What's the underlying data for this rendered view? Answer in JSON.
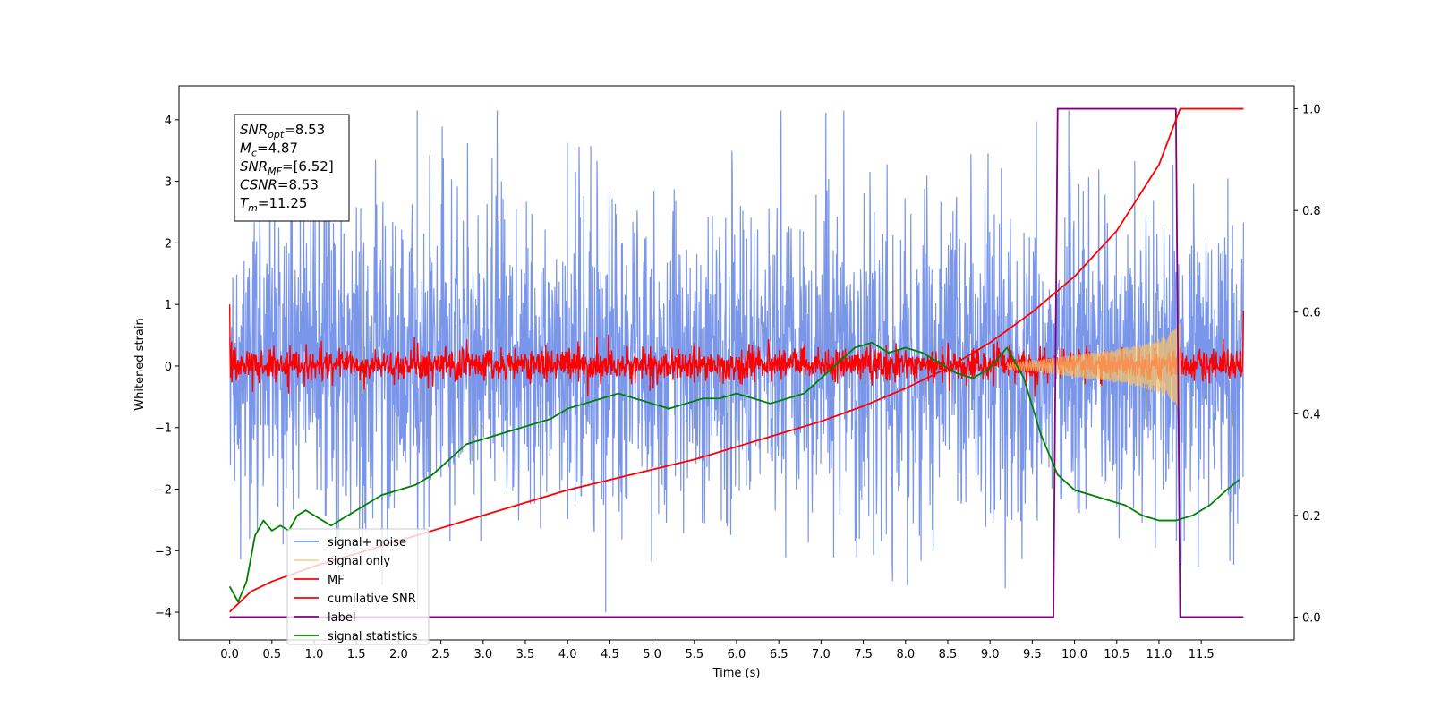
{
  "chart_data": {
    "type": "line",
    "xlabel": "Time (s)",
    "ylabel": "Whitened strain",
    "xlim": [
      -0.6,
      12.6
    ],
    "ylim": [
      -4.45,
      4.55
    ],
    "ylim_right": [
      -0.045,
      1.045
    ],
    "x_ticks": [
      "0.0",
      "0.5",
      "1.0",
      "1.5",
      "2.0",
      "2.5",
      "3.0",
      "3.5",
      "4.0",
      "4.5",
      "5.0",
      "5.5",
      "6.0",
      "6.5",
      "7.0",
      "7.5",
      "8.0",
      "8.5",
      "9.0",
      "9.5",
      "10.0",
      "10.5",
      "11.0",
      "11.5"
    ],
    "y_ticks": [
      "4",
      "3",
      "2",
      "1",
      "0",
      "−1",
      "−2",
      "−3",
      "−4"
    ],
    "y_ticks_right": [
      "1.0",
      "0.8",
      "0.6",
      "0.4",
      "0.2",
      "0.0"
    ],
    "info_box": [
      {
        "main": "SNR",
        "sub": "opt",
        "value": "=8.53"
      },
      {
        "main": "M",
        "sub": "c",
        "value": "=4.87"
      },
      {
        "main": "SNR",
        "sub": "MF",
        "value": "=[6.52]"
      },
      {
        "main": "CSNR",
        "sub": "",
        "value": "=8.53"
      },
      {
        "main": "T",
        "sub": "m",
        "value": "=11.25"
      }
    ],
    "legend_position": "lower-left",
    "series": [
      {
        "name": "signal+ noise",
        "color": "#4169e1",
        "axis": "left",
        "kind": "noise-band",
        "x_range": [
          0,
          12
        ],
        "band_typical": [
          -1.8,
          2.0
        ],
        "extremes_max": 4.15,
        "extremes_min": -4.0
      },
      {
        "name": "signal only",
        "color": "#f5c06b",
        "axis": "left",
        "kind": "chirp",
        "x": [
          9.2,
          9.6,
          10.0,
          10.4,
          10.8,
          11.0,
          11.2,
          11.25
        ],
        "amplitude": [
          0.05,
          0.1,
          0.18,
          0.25,
          0.35,
          0.45,
          0.6,
          0.8
        ]
      },
      {
        "name": "MF",
        "color": "#ff0000",
        "axis": "left",
        "kind": "noise-band",
        "x_range": [
          0,
          12
        ],
        "band_typical": [
          -0.2,
          0.25
        ],
        "start_value": 1.0,
        "end_value": 0.9
      },
      {
        "name": "cumilative SNR",
        "color": "#ff0000",
        "axis": "right",
        "x": [
          0.0,
          0.25,
          0.5,
          1.0,
          1.5,
          2.0,
          2.5,
          3.0,
          3.5,
          4.0,
          4.5,
          5.0,
          5.5,
          6.0,
          6.5,
          7.0,
          7.5,
          8.0,
          8.5,
          9.0,
          9.5,
          10.0,
          10.5,
          11.0,
          11.25,
          12.0
        ],
        "y": [
          0.01,
          0.05,
          0.07,
          0.1,
          0.125,
          0.15,
          0.175,
          0.2,
          0.225,
          0.25,
          0.27,
          0.29,
          0.31,
          0.335,
          0.36,
          0.385,
          0.415,
          0.45,
          0.49,
          0.54,
          0.6,
          0.67,
          0.76,
          0.89,
          1.0,
          1.0
        ]
      },
      {
        "name": "label",
        "color": "#800080",
        "axis": "right",
        "x": [
          0.0,
          9.75,
          9.8,
          11.2,
          11.25,
          12.0
        ],
        "y": [
          0.0,
          0.0,
          1.0,
          1.0,
          0.0,
          0.0
        ]
      },
      {
        "name": "signal statistics",
        "color": "#008000",
        "axis": "right",
        "x": [
          0.0,
          0.1,
          0.2,
          0.3,
          0.4,
          0.5,
          0.6,
          0.7,
          0.8,
          0.9,
          1.0,
          1.2,
          1.4,
          1.6,
          1.8,
          2.0,
          2.2,
          2.4,
          2.6,
          2.8,
          3.0,
          3.2,
          3.4,
          3.6,
          3.8,
          4.0,
          4.2,
          4.4,
          4.6,
          4.8,
          5.0,
          5.2,
          5.4,
          5.6,
          5.8,
          6.0,
          6.2,
          6.4,
          6.6,
          6.8,
          7.0,
          7.2,
          7.4,
          7.6,
          7.8,
          8.0,
          8.2,
          8.4,
          8.6,
          8.8,
          9.0,
          9.2,
          9.4,
          9.6,
          9.8,
          10.0,
          10.2,
          10.4,
          10.6,
          10.8,
          11.0,
          11.2,
          11.4,
          11.6,
          11.8,
          11.95
        ],
        "y": [
          0.06,
          0.03,
          0.07,
          0.16,
          0.19,
          0.17,
          0.18,
          0.17,
          0.2,
          0.21,
          0.2,
          0.18,
          0.2,
          0.22,
          0.24,
          0.25,
          0.26,
          0.28,
          0.31,
          0.34,
          0.35,
          0.36,
          0.37,
          0.38,
          0.39,
          0.41,
          0.42,
          0.43,
          0.44,
          0.43,
          0.42,
          0.41,
          0.42,
          0.43,
          0.43,
          0.44,
          0.43,
          0.42,
          0.43,
          0.44,
          0.47,
          0.5,
          0.53,
          0.54,
          0.52,
          0.53,
          0.52,
          0.5,
          0.48,
          0.47,
          0.49,
          0.53,
          0.47,
          0.36,
          0.28,
          0.25,
          0.24,
          0.23,
          0.22,
          0.2,
          0.19,
          0.19,
          0.2,
          0.22,
          0.25,
          0.27
        ]
      }
    ]
  }
}
